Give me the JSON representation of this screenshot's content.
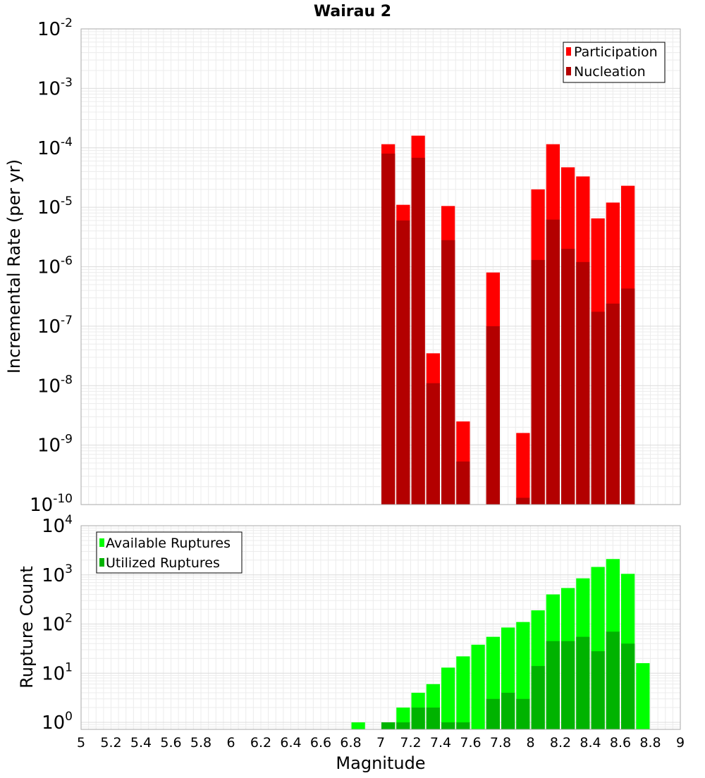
{
  "chart_data": [
    {
      "type": "bar",
      "title": "Wairau 2",
      "xlabel": "",
      "ylabel": "Incremental Rate (per yr)",
      "xlim": [
        5,
        9
      ],
      "ylim": [
        1e-10,
        0.01
      ],
      "yscale": "log",
      "grid": true,
      "legend_position": "top-right",
      "y_tick_labels": [
        {
          "base": "10",
          "exp": "-10",
          "value": 1e-10
        },
        {
          "base": "10",
          "exp": "-9",
          "value": 1e-09
        },
        {
          "base": "10",
          "exp": "-8",
          "value": 1e-08
        },
        {
          "base": "10",
          "exp": "-7",
          "value": 1e-07
        },
        {
          "base": "10",
          "exp": "-6",
          "value": 1e-06
        },
        {
          "base": "10",
          "exp": "-5",
          "value": 1e-05
        },
        {
          "base": "10",
          "exp": "-4",
          "value": 0.0001
        },
        {
          "base": "10",
          "exp": "-3",
          "value": 0.001
        },
        {
          "base": "10",
          "exp": "-2",
          "value": 0.01
        }
      ],
      "series": [
        {
          "name": "Participation",
          "color": "#ff0000",
          "points": [
            {
              "x": 7.05,
              "y": 0.000115
            },
            {
              "x": 7.15,
              "y": 1.1e-05
            },
            {
              "x": 7.25,
              "y": 0.00016
            },
            {
              "x": 7.35,
              "y": 3.5e-08
            },
            {
              "x": 7.45,
              "y": 1.05e-05
            },
            {
              "x": 7.55,
              "y": 2.5e-09
            },
            {
              "x": 7.75,
              "y": 8e-07
            },
            {
              "x": 7.95,
              "y": 1.6e-09
            },
            {
              "x": 8.05,
              "y": 2e-05
            },
            {
              "x": 8.15,
              "y": 0.000115
            },
            {
              "x": 8.25,
              "y": 4.7e-05
            },
            {
              "x": 8.35,
              "y": 3.3e-05
            },
            {
              "x": 8.45,
              "y": 6.5e-06
            },
            {
              "x": 8.55,
              "y": 1.2e-05
            },
            {
              "x": 8.65,
              "y": 2.3e-05
            }
          ]
        },
        {
          "name": "Nucleation",
          "color": "#b30000",
          "points": [
            {
              "x": 7.05,
              "y": 8e-05
            },
            {
              "x": 7.15,
              "y": 6e-06
            },
            {
              "x": 7.25,
              "y": 6.8e-05
            },
            {
              "x": 7.35,
              "y": 1.1e-08
            },
            {
              "x": 7.45,
              "y": 2.8e-06
            },
            {
              "x": 7.55,
              "y": 5.3e-10
            },
            {
              "x": 7.75,
              "y": 1e-07
            },
            {
              "x": 7.95,
              "y": 1.3e-10
            },
            {
              "x": 8.05,
              "y": 1.3e-06
            },
            {
              "x": 8.15,
              "y": 6.2e-06
            },
            {
              "x": 8.25,
              "y": 2e-06
            },
            {
              "x": 8.35,
              "y": 1.2e-06
            },
            {
              "x": 8.45,
              "y": 1.75e-07
            },
            {
              "x": 8.55,
              "y": 2.4e-07
            },
            {
              "x": 8.65,
              "y": 4.3e-07
            }
          ]
        }
      ]
    },
    {
      "type": "bar",
      "title": "",
      "xlabel": "Magnitude",
      "ylabel": "Rupture Count",
      "xlim": [
        5,
        9
      ],
      "ylim": [
        0.72,
        10000.0
      ],
      "yscale": "log",
      "grid": true,
      "legend_position": "top-left",
      "x_tick_labels": [
        "5",
        "5.2",
        "5.4",
        "5.6",
        "5.8",
        "6",
        "6.2",
        "6.4",
        "6.6",
        "6.8",
        "7",
        "7.2",
        "7.4",
        "7.6",
        "7.8",
        "8",
        "8.2",
        "8.4",
        "8.6",
        "8.8",
        "9"
      ],
      "y_tick_labels": [
        {
          "base": "10",
          "exp": "0",
          "value": 1
        },
        {
          "base": "10",
          "exp": "1",
          "value": 10
        },
        {
          "base": "10",
          "exp": "2",
          "value": 100
        },
        {
          "base": "10",
          "exp": "3",
          "value": 1000
        },
        {
          "base": "10",
          "exp": "4",
          "value": 10000
        }
      ],
      "series": [
        {
          "name": "Available Ruptures",
          "color": "#00ff00",
          "points": [
            {
              "x": 6.85,
              "y": 1
            },
            {
              "x": 7.05,
              "y": 1
            },
            {
              "x": 7.15,
              "y": 2
            },
            {
              "x": 7.25,
              "y": 4
            },
            {
              "x": 7.35,
              "y": 6
            },
            {
              "x": 7.45,
              "y": 13
            },
            {
              "x": 7.55,
              "y": 22
            },
            {
              "x": 7.65,
              "y": 38
            },
            {
              "x": 7.75,
              "y": 55
            },
            {
              "x": 7.85,
              "y": 85
            },
            {
              "x": 7.95,
              "y": 110
            },
            {
              "x": 8.05,
              "y": 190
            },
            {
              "x": 8.15,
              "y": 400
            },
            {
              "x": 8.25,
              "y": 540
            },
            {
              "x": 8.35,
              "y": 850
            },
            {
              "x": 8.45,
              "y": 1450
            },
            {
              "x": 8.55,
              "y": 2100
            },
            {
              "x": 8.65,
              "y": 1050
            },
            {
              "x": 8.75,
              "y": 16
            }
          ]
        },
        {
          "name": "Utilized Ruptures",
          "color": "#00b300",
          "points": [
            {
              "x": 7.05,
              "y": 1
            },
            {
              "x": 7.15,
              "y": 1
            },
            {
              "x": 7.25,
              "y": 2
            },
            {
              "x": 7.35,
              "y": 2
            },
            {
              "x": 7.45,
              "y": 1
            },
            {
              "x": 7.55,
              "y": 1
            },
            {
              "x": 7.75,
              "y": 3
            },
            {
              "x": 7.85,
              "y": 4
            },
            {
              "x": 7.95,
              "y": 3
            },
            {
              "x": 8.05,
              "y": 14
            },
            {
              "x": 8.15,
              "y": 45
            },
            {
              "x": 8.25,
              "y": 45
            },
            {
              "x": 8.35,
              "y": 55
            },
            {
              "x": 8.45,
              "y": 28
            },
            {
              "x": 8.55,
              "y": 70
            },
            {
              "x": 8.65,
              "y": 40
            }
          ]
        }
      ]
    }
  ]
}
